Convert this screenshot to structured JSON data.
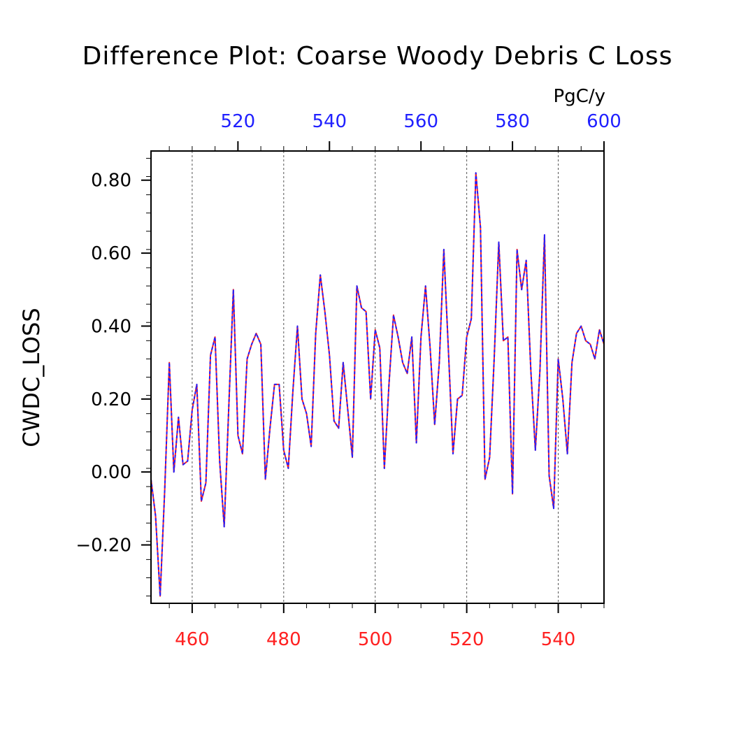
{
  "chart_data": {
    "type": "line",
    "title": "Difference Plot: Coarse Woody Debris C Loss",
    "units": "PgC/y",
    "ylabel": "CWDC_LOSS",
    "ylim": [
      -0.36,
      0.88
    ],
    "y_ticks": [
      -0.2,
      0.0,
      0.2,
      0.4,
      0.6,
      0.8
    ],
    "y_tick_labels": [
      "−0.20",
      "0.00",
      "0.20",
      "0.40",
      "0.60",
      "0.80"
    ],
    "x_bottom": {
      "range": [
        451,
        550
      ],
      "ticks": [
        460,
        480,
        500,
        520,
        540
      ],
      "tick_labels": [
        "460",
        "480",
        "500",
        "520",
        "540"
      ],
      "color": "#ff2020"
    },
    "x_top": {
      "range": [
        501,
        600
      ],
      "ticks": [
        520,
        540,
        560,
        580,
        600
      ],
      "tick_labels": [
        "520",
        "540",
        "560",
        "580",
        "600"
      ],
      "color": "#2020ff"
    },
    "grid": "dashed vertical",
    "series": [
      {
        "color": "#ff2020",
        "style": "solid",
        "x": [
          451,
          452,
          453,
          454,
          455,
          456,
          457,
          458,
          459,
          460,
          461,
          462,
          463,
          464,
          465,
          466,
          467,
          468,
          469,
          470,
          471,
          472,
          473,
          474,
          475,
          476,
          477,
          478,
          479,
          480,
          481,
          482,
          483,
          484,
          485,
          486,
          487,
          488,
          489,
          490,
          491,
          492,
          493,
          494,
          495,
          496,
          497,
          498,
          499,
          500,
          501,
          502,
          503,
          504,
          505,
          506,
          507,
          508,
          509,
          510,
          511,
          512,
          513,
          514,
          515,
          516,
          517,
          518,
          519,
          520,
          521,
          522,
          523,
          524,
          525,
          526,
          527,
          528,
          529,
          530,
          531,
          532,
          533,
          534,
          535,
          536,
          537,
          538,
          539,
          540,
          541,
          542,
          543,
          544,
          545,
          546,
          547,
          548,
          549,
          550
        ],
        "y": [
          -0.02,
          -0.12,
          -0.34,
          -0.05,
          0.3,
          0.0,
          0.15,
          0.02,
          0.03,
          0.17,
          0.24,
          -0.08,
          -0.03,
          0.32,
          0.37,
          0.03,
          -0.15,
          0.18,
          0.5,
          0.1,
          0.05,
          0.31,
          0.35,
          0.38,
          0.35,
          -0.02,
          0.12,
          0.24,
          0.24,
          0.06,
          0.01,
          0.22,
          0.4,
          0.2,
          0.16,
          0.07,
          0.38,
          0.54,
          0.44,
          0.32,
          0.14,
          0.12,
          0.3,
          0.17,
          0.04,
          0.51,
          0.45,
          0.44,
          0.2,
          0.39,
          0.34,
          0.01,
          0.24,
          0.43,
          0.37,
          0.3,
          0.27,
          0.37,
          0.08,
          0.37,
          0.51,
          0.34,
          0.13,
          0.3,
          0.61,
          0.33,
          0.05,
          0.2,
          0.21,
          0.37,
          0.42,
          0.82,
          0.67,
          -0.02,
          0.04,
          0.31,
          0.63,
          0.36,
          0.37,
          -0.06,
          0.61,
          0.5,
          0.58,
          0.28,
          0.06,
          0.28,
          0.65,
          -0.01,
          -0.1,
          0.31,
          0.2,
          0.05,
          0.3,
          0.38,
          0.4,
          0.36,
          0.35,
          0.31,
          0.39,
          0.35
        ]
      },
      {
        "color": "#2020ff",
        "style": "dashed",
        "x": [
          451,
          452,
          453,
          454,
          455,
          456,
          457,
          458,
          459,
          460,
          461,
          462,
          463,
          464,
          465,
          466,
          467,
          468,
          469,
          470,
          471,
          472,
          473,
          474,
          475,
          476,
          477,
          478,
          479,
          480,
          481,
          482,
          483,
          484,
          485,
          486,
          487,
          488,
          489,
          490,
          491,
          492,
          493,
          494,
          495,
          496,
          497,
          498,
          499,
          500,
          501,
          502,
          503,
          504,
          505,
          506,
          507,
          508,
          509,
          510,
          511,
          512,
          513,
          514,
          515,
          516,
          517,
          518,
          519,
          520,
          521,
          522,
          523,
          524,
          525,
          526,
          527,
          528,
          529,
          530,
          531,
          532,
          533,
          534,
          535,
          536,
          537,
          538,
          539,
          540,
          541,
          542,
          543,
          544,
          545,
          546,
          547,
          548,
          549,
          550
        ],
        "y": [
          -0.02,
          -0.12,
          -0.34,
          -0.05,
          0.3,
          0.0,
          0.15,
          0.02,
          0.03,
          0.17,
          0.24,
          -0.08,
          -0.03,
          0.32,
          0.37,
          0.03,
          -0.15,
          0.18,
          0.5,
          0.1,
          0.05,
          0.31,
          0.35,
          0.38,
          0.35,
          -0.02,
          0.12,
          0.24,
          0.24,
          0.06,
          0.01,
          0.22,
          0.4,
          0.2,
          0.16,
          0.07,
          0.38,
          0.54,
          0.44,
          0.32,
          0.14,
          0.12,
          0.3,
          0.17,
          0.04,
          0.51,
          0.45,
          0.44,
          0.2,
          0.39,
          0.34,
          0.01,
          0.24,
          0.43,
          0.37,
          0.3,
          0.27,
          0.37,
          0.08,
          0.37,
          0.51,
          0.34,
          0.13,
          0.3,
          0.61,
          0.33,
          0.05,
          0.2,
          0.21,
          0.37,
          0.42,
          0.82,
          0.67,
          -0.02,
          0.04,
          0.31,
          0.63,
          0.36,
          0.37,
          -0.06,
          0.61,
          0.5,
          0.58,
          0.28,
          0.06,
          0.28,
          0.65,
          -0.01,
          -0.1,
          0.31,
          0.2,
          0.05,
          0.3,
          0.38,
          0.4,
          0.36,
          0.35,
          0.31,
          0.39,
          0.35
        ]
      }
    ]
  }
}
